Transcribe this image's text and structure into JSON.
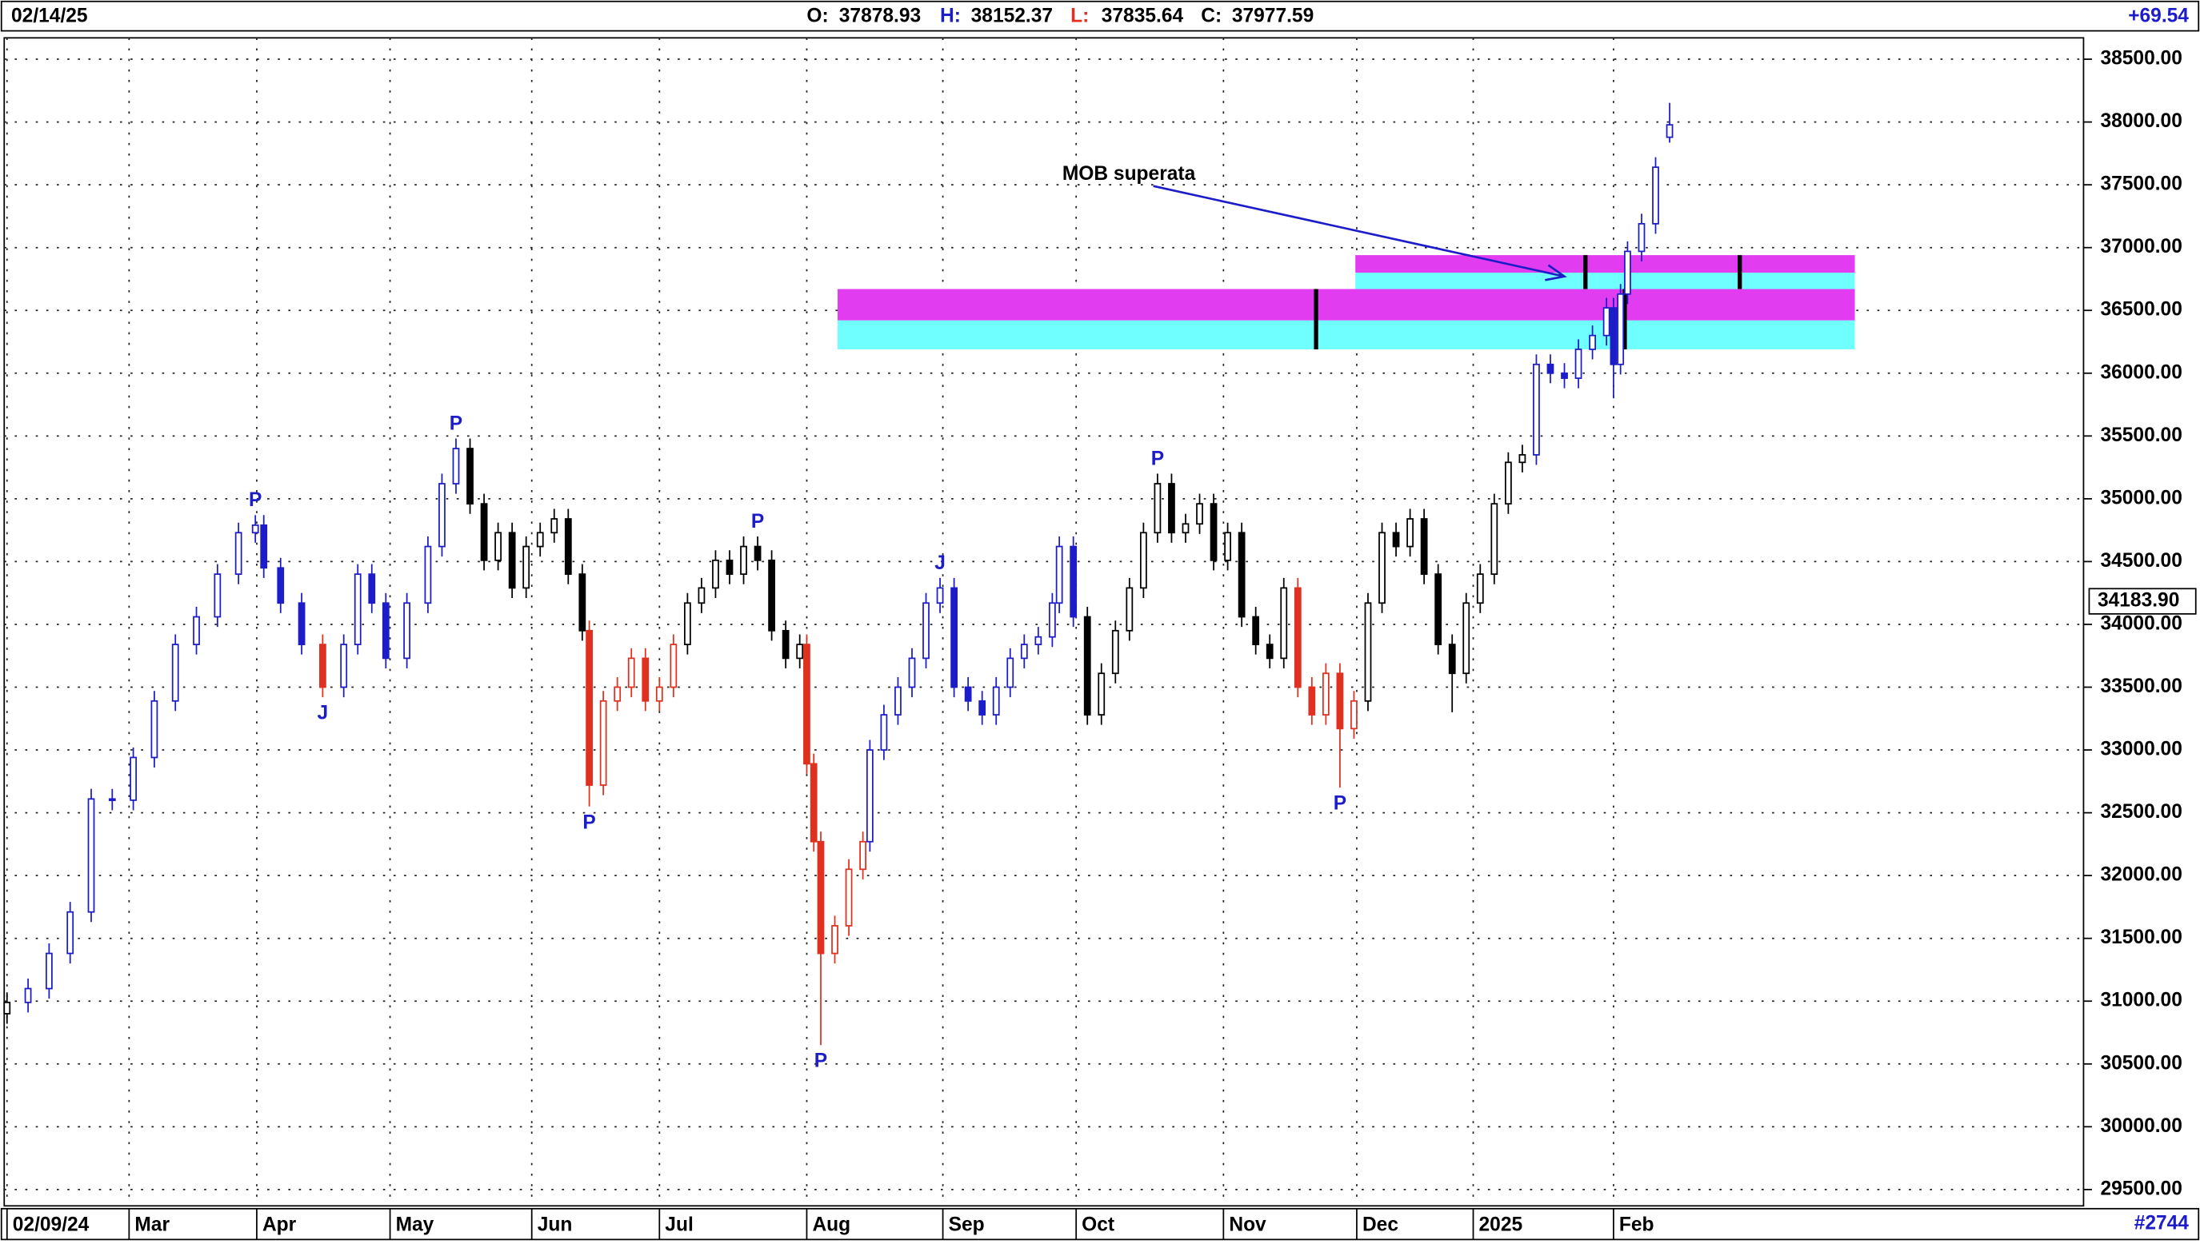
{
  "header": {
    "date": "02/14/25",
    "labels": [
      "O:",
      "H:",
      "L:",
      "C:"
    ],
    "change": "+69.54"
  },
  "footer": {
    "bar_count": "#2744"
  },
  "chart_data": {
    "type": "candlestick",
    "x": [
      5,
      20,
      35,
      50,
      65,
      80,
      95,
      110,
      125,
      140,
      155,
      170,
      182,
      188,
      200,
      215,
      230,
      245,
      255,
      265,
      275,
      290,
      305,
      315,
      325,
      335,
      345,
      355,
      365,
      375,
      385,
      395,
      405,
      415,
      420,
      430,
      440,
      450,
      460,
      470,
      480,
      490,
      500,
      510,
      520,
      530,
      540,
      550,
      560,
      570,
      575,
      580,
      585,
      595,
      605,
      615,
      620,
      630,
      640,
      650,
      660,
      670,
      680,
      690,
      700,
      710,
      720,
      730,
      740,
      750,
      755,
      765,
      775,
      785,
      795,
      805,
      815,
      825,
      835,
      845,
      855,
      865,
      875,
      885,
      895,
      905,
      915,
      925,
      935,
      945,
      955,
      965,
      975,
      985,
      995,
      1005,
      1015,
      1025,
      1035,
      1045,
      1055,
      1065,
      1075,
      1085,
      1095,
      1105,
      1115,
      1125,
      1135,
      1145,
      1150,
      1155,
      1160,
      1170,
      1180,
      1190
    ],
    "open": [
      30900,
      30990,
      31100,
      31380,
      31710,
      32610,
      32600,
      32940,
      33390,
      33840,
      34060,
      34400,
      34730,
      34790,
      34450,
      34170,
      33840,
      33500,
      33840,
      34400,
      34170,
      33730,
      34170,
      34620,
      35120,
      35400,
      34960,
      34510,
      34730,
      34290,
      34620,
      34730,
      34840,
      34400,
      33950,
      32720,
      33390,
      33500,
      33730,
      33390,
      33500,
      33840,
      34170,
      34290,
      34510,
      34400,
      34620,
      34510,
      33950,
      33730,
      33840,
      32890,
      32270,
      31380,
      31600,
      32050,
      32270,
      33000,
      33280,
      33500,
      33730,
      34170,
      34290,
      33500,
      33390,
      33280,
      33500,
      33730,
      33840,
      33900,
      34170,
      34620,
      34060,
      33280,
      33610,
      33950,
      34290,
      34730,
      35120,
      34730,
      34800,
      34960,
      34510,
      34730,
      34060,
      33840,
      33730,
      34290,
      33500,
      33280,
      33610,
      33170,
      33390,
      34170,
      34730,
      34620,
      34840,
      34400,
      33840,
      33610,
      34170,
      34400,
      34960,
      35290,
      35350,
      36070,
      36000,
      35960,
      36190,
      36300,
      36520,
      36070,
      36630,
      36970,
      37190,
      37878.93
    ],
    "high": [
      31070,
      31180,
      31460,
      31790,
      32690,
      32690,
      33020,
      33470,
      33920,
      34140,
      34480,
      34810,
      34870,
      34870,
      34530,
      34250,
      33920,
      33920,
      34480,
      34480,
      34250,
      34250,
      34700,
      35200,
      35480,
      35480,
      35040,
      34810,
      34810,
      34700,
      34810,
      34920,
      34920,
      34480,
      34030,
      33470,
      33580,
      33810,
      33810,
      33580,
      33920,
      34250,
      34370,
      34590,
      34590,
      34700,
      34700,
      34590,
      34030,
      33920,
      33920,
      32970,
      32350,
      31680,
      32130,
      32350,
      33080,
      33360,
      33580,
      33810,
      34250,
      34370,
      34370,
      33580,
      33470,
      33580,
      33810,
      33920,
      33980,
      34250,
      34700,
      34700,
      34140,
      33690,
      34030,
      34370,
      34810,
      35200,
      35200,
      34880,
      35040,
      35040,
      34810,
      34810,
      34140,
      33920,
      34370,
      34370,
      33580,
      33690,
      33690,
      33470,
      34250,
      34810,
      34810,
      34920,
      34920,
      34480,
      33920,
      34250,
      34480,
      35040,
      35370,
      35430,
      36150,
      36150,
      36080,
      36270,
      36380,
      36600,
      36600,
      36710,
      37050,
      37270,
      37720,
      38152.37
    ],
    "low": [
      30820,
      30910,
      31020,
      31300,
      31630,
      32520,
      32520,
      32860,
      33310,
      33760,
      33980,
      34320,
      34650,
      34370,
      34090,
      33760,
      33420,
      33420,
      33760,
      34090,
      33650,
      33650,
      34090,
      34540,
      35040,
      34880,
      34430,
      34430,
      34210,
      34210,
      34540,
      34650,
      34320,
      33870,
      32550,
      32640,
      33310,
      33420,
      33310,
      33310,
      33420,
      33760,
      34090,
      34210,
      34320,
      34320,
      34430,
      33870,
      33650,
      33650,
      32810,
      32190,
      30650,
      31300,
      31520,
      31970,
      32190,
      32920,
      33200,
      33420,
      33650,
      34090,
      33420,
      33310,
      33200,
      33200,
      33420,
      33650,
      33760,
      33820,
      34090,
      33980,
      33200,
      33200,
      33530,
      33870,
      34210,
      34650,
      34650,
      34650,
      34720,
      34430,
      34430,
      33980,
      33760,
      33650,
      33650,
      33420,
      33200,
      33200,
      32700,
      33090,
      33310,
      34090,
      34540,
      34540,
      34320,
      33760,
      33300,
      33530,
      34090,
      34320,
      34880,
      35210,
      35270,
      35920,
      35880,
      35880,
      36110,
      36220,
      35800,
      35990,
      36550,
      36890,
      37110,
      37835.64
    ],
    "close": [
      30990,
      31100,
      31380,
      31710,
      32610,
      32600,
      32940,
      33390,
      33840,
      34060,
      34400,
      34730,
      34790,
      34450,
      34170,
      33840,
      33500,
      33840,
      34400,
      34170,
      33730,
      34170,
      34620,
      35120,
      35400,
      34960,
      34510,
      34730,
      34290,
      34620,
      34730,
      34840,
      34400,
      33950,
      32720,
      33390,
      33500,
      33730,
      33390,
      33500,
      33840,
      34170,
      34290,
      34510,
      34400,
      34620,
      34510,
      33950,
      33730,
      33840,
      32890,
      32270,
      31380,
      31600,
      32050,
      32270,
      33000,
      33280,
      33500,
      33730,
      34170,
      34290,
      33500,
      33390,
      33280,
      33500,
      33730,
      33840,
      33900,
      34170,
      34620,
      34060,
      33280,
      33610,
      33950,
      34290,
      34730,
      35120,
      34730,
      34800,
      34960,
      34510,
      34730,
      34060,
      33840,
      33730,
      34290,
      33500,
      33280,
      33610,
      33170,
      33390,
      34170,
      34730,
      34620,
      34840,
      34400,
      33840,
      33610,
      34170,
      34400,
      34960,
      35290,
      35350,
      36070,
      36000,
      35960,
      36190,
      36300,
      36520,
      36070,
      36630,
      36970,
      37190,
      37640,
      37977.59
    ],
    "colors": [
      "#000000",
      "#1c1cc8",
      "#1c1cc8",
      "#1c1cc8",
      "#1c1cc8",
      "#1c1cc8",
      "#1c1cc8",
      "#1c1cc8",
      "#1c1cc8",
      "#1c1cc8",
      "#1c1cc8",
      "#1c1cc8",
      "#1c1cc8",
      "#1c1cc8",
      "#1c1cc8",
      "#1c1cc8",
      "#e03020",
      "#1c1cc8",
      "#1c1cc8",
      "#1c1cc8",
      "#1c1cc8",
      "#1c1cc8",
      "#1c1cc8",
      "#1c1cc8",
      "#1c1cc8",
      "#000000",
      "#000000",
      "#000000",
      "#000000",
      "#000000",
      "#000000",
      "#000000",
      "#000000",
      "#000000",
      "#e03020",
      "#e03020",
      "#e03020",
      "#e03020",
      "#e03020",
      "#e03020",
      "#e03020",
      "#000000",
      "#000000",
      "#000000",
      "#000000",
      "#000000",
      "#000000",
      "#000000",
      "#000000",
      "#000000",
      "#e03020",
      "#e03020",
      "#e03020",
      "#e03020",
      "#e03020",
      "#e03020",
      "#1c1cc8",
      "#1c1cc8",
      "#1c1cc8",
      "#1c1cc8",
      "#1c1cc8",
      "#1c1cc8",
      "#1c1cc8",
      "#1c1cc8",
      "#1c1cc8",
      "#1c1cc8",
      "#1c1cc8",
      "#1c1cc8",
      "#1c1cc8",
      "#1c1cc8",
      "#1c1cc8",
      "#1c1cc8",
      "#000000",
      "#000000",
      "#000000",
      "#000000",
      "#000000",
      "#000000",
      "#000000",
      "#000000",
      "#000000",
      "#000000",
      "#000000",
      "#000000",
      "#000000",
      "#000000",
      "#000000",
      "#e03020",
      "#e03020",
      "#e03020",
      "#e03020",
      "#e03020",
      "#000000",
      "#000000",
      "#000000",
      "#000000",
      "#000000",
      "#000000",
      "#000000",
      "#000000",
      "#000000",
      "#000000",
      "#000000",
      "#000000",
      "#1c1cc8",
      "#1c1cc8",
      "#1c1cc8",
      "#1c1cc8",
      "#1c1cc8",
      "#1c1cc8",
      "#1c1cc8",
      "#1c1cc8",
      "#1c1cc8",
      "#1c1cc8",
      "#1c1cc8",
      "#1c1cc8"
    ],
    "xlim": [
      3,
      1485
    ],
    "ylim": [
      29370,
      38670
    ],
    "xticks": [
      {
        "value": 5,
        "label": "02/09/24"
      },
      {
        "value": 92,
        "label": "Mar"
      },
      {
        "value": 183,
        "label": "Apr"
      },
      {
        "value": 278,
        "label": "May"
      },
      {
        "value": 379,
        "label": "Jun"
      },
      {
        "value": 470,
        "label": "Jul"
      },
      {
        "value": 575,
        "label": "Aug"
      },
      {
        "value": 672,
        "label": "Sep"
      },
      {
        "value": 767,
        "label": "Oct"
      },
      {
        "value": 872,
        "label": "Nov"
      },
      {
        "value": 967,
        "label": "Dec"
      },
      {
        "value": 1050,
        "label": "2025"
      },
      {
        "value": 1150,
        "label": "Feb"
      }
    ],
    "yticks": [
      {
        "value": 29500,
        "label": "29500.00"
      },
      {
        "value": 30000,
        "label": "30000.00"
      },
      {
        "value": 30500,
        "label": "30500.00"
      },
      {
        "value": 31000,
        "label": "31000.00"
      },
      {
        "value": 31500,
        "label": "31500.00"
      },
      {
        "value": 32000,
        "label": "32000.00"
      },
      {
        "value": 32500,
        "label": "32500.00"
      },
      {
        "value": 33000,
        "label": "33000.00"
      },
      {
        "value": 33500,
        "label": "33500.00"
      },
      {
        "value": 34000,
        "label": "34000.00"
      },
      {
        "value": 34500,
        "label": "34500.00"
      },
      {
        "value": 35000,
        "label": "35000.00"
      },
      {
        "value": 35500,
        "label": "35500.00"
      },
      {
        "value": 36000,
        "label": "36000.00"
      },
      {
        "value": 36500,
        "label": "36500.00"
      },
      {
        "value": 37000,
        "label": "37000.00"
      },
      {
        "value": 37500,
        "label": "37500.00"
      },
      {
        "value": 38000,
        "label": "38000.00"
      },
      {
        "value": 38500,
        "label": "38500.00"
      }
    ],
    "grid": true,
    "price_marker": {
      "value": 34183.9,
      "label": "34183.90"
    },
    "zones": [
      {
        "x": [
          597,
          1322
        ],
        "magenta": [
          36670,
          36420
        ],
        "cyan": [
          36420,
          36190
        ]
      },
      {
        "x": [
          966,
          1322
        ],
        "magenta": [
          36940,
          36800
        ],
        "cyan": [
          36800,
          36670
        ]
      }
    ],
    "zone_colors": {
      "magenta": "#e23cf0",
      "cyan": "#70ffff"
    },
    "markers": [
      {
        "x": 938,
        "y": [
          36670,
          36190
        ]
      },
      {
        "x": 1130,
        "y": [
          36940,
          36670
        ]
      },
      {
        "x": 1240,
        "y": [
          36940,
          36670
        ]
      },
      {
        "x": 1158,
        "y": [
          36670,
          36190
        ]
      }
    ],
    "pivots": [
      {
        "text": "P",
        "x": 182,
        "position": "above"
      },
      {
        "text": "J",
        "x": 230,
        "position": "below"
      },
      {
        "text": "P",
        "x": 325,
        "position": "above"
      },
      {
        "text": "P",
        "x": 420,
        "position": "below"
      },
      {
        "text": "P",
        "x": 540,
        "position": "above"
      },
      {
        "text": "P",
        "x": 585,
        "position": "below"
      },
      {
        "text": "J",
        "x": 670,
        "position": "above"
      },
      {
        "text": "P",
        "x": 825,
        "position": "above"
      },
      {
        "text": "P",
        "x": 955,
        "position": "below"
      }
    ],
    "arrow": {
      "text": "MOB superata",
      "from": [
        822,
        37490
      ],
      "to": [
        1115,
        36770
      ],
      "color": "#1c1cc8"
    }
  }
}
